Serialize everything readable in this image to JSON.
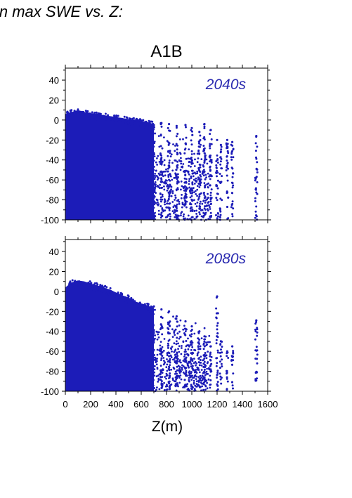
{
  "page": {
    "title": "in max SWE vs. Z:"
  },
  "colors": {
    "points": "#1c1cb8",
    "period_label": "#2a2ab0",
    "axes": "#000000"
  },
  "chart_data": [
    {
      "type": "scatter",
      "title": "A1B",
      "annotation": "2040s",
      "xlabel": "",
      "ylabel": "",
      "xlim": [
        0,
        1600
      ],
      "ylim": [
        -100,
        52
      ],
      "xticks": [],
      "yticks": [
        -100,
        -80,
        -60,
        -40,
        -20,
        0,
        20,
        40
      ],
      "envelope": {
        "z": [
          0,
          50,
          100,
          150,
          200,
          250,
          300,
          350,
          400,
          450,
          500,
          550,
          600,
          650,
          700
        ],
        "upper": [
          8,
          10,
          12,
          10,
          9,
          8,
          7,
          6,
          5,
          4,
          3,
          2,
          1,
          0,
          -2
        ]
      },
      "columns": [
        {
          "z": 700,
          "top": -5
        },
        {
          "z": 760,
          "top": -3
        },
        {
          "z": 820,
          "top": -4
        },
        {
          "z": 880,
          "top": -6
        },
        {
          "z": 950,
          "top": -5
        },
        {
          "z": 1000,
          "top": -8
        },
        {
          "z": 1060,
          "top": -12
        },
        {
          "z": 1100,
          "top": -4
        },
        {
          "z": 1150,
          "top": -10
        },
        {
          "z": 1200,
          "top": -20
        },
        {
          "z": 1230,
          "top": -25
        },
        {
          "z": 1280,
          "top": -20
        },
        {
          "z": 1320,
          "top": -22
        },
        {
          "z": 1510,
          "top": -16
        }
      ],
      "grid": false,
      "legend": "none"
    },
    {
      "type": "scatter",
      "title": "",
      "annotation": "2080s",
      "xlabel": "Z(m)",
      "ylabel": "",
      "xlim": [
        0,
        1600
      ],
      "ylim": [
        -100,
        52
      ],
      "xticks": [
        0,
        200,
        400,
        600,
        800,
        1000,
        1200,
        1400,
        1600
      ],
      "yticks": [
        -100,
        -80,
        -60,
        -40,
        -20,
        0,
        20,
        40
      ],
      "envelope": {
        "z": [
          0,
          50,
          100,
          150,
          200,
          250,
          300,
          350,
          400,
          450,
          500,
          550,
          600,
          650,
          700
        ],
        "upper": [
          6,
          11,
          13,
          12,
          10,
          8,
          6,
          4,
          1,
          -2,
          -4,
          -8,
          -10,
          -12,
          -15
        ]
      },
      "columns": [
        {
          "z": 700,
          "top": -15
        },
        {
          "z": 760,
          "top": -18
        },
        {
          "z": 820,
          "top": -20
        },
        {
          "z": 880,
          "top": -25
        },
        {
          "z": 950,
          "top": -30
        },
        {
          "z": 1000,
          "top": -35
        },
        {
          "z": 1060,
          "top": -40
        },
        {
          "z": 1100,
          "top": -45
        },
        {
          "z": 1150,
          "top": -55
        },
        {
          "z": 1200,
          "top": -5
        },
        {
          "z": 1230,
          "top": -50
        },
        {
          "z": 1280,
          "top": -60
        },
        {
          "z": 1320,
          "top": -55
        },
        {
          "z": 1510,
          "top": -29
        }
      ],
      "grid": false,
      "legend": "none"
    }
  ]
}
